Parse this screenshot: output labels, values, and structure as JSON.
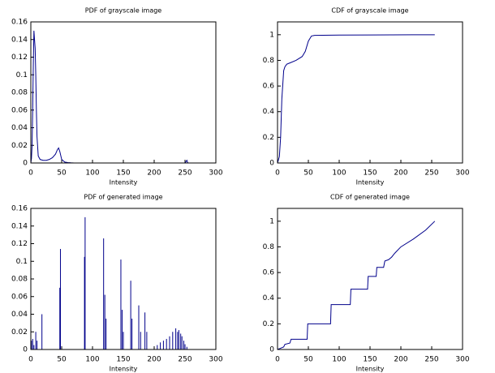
{
  "chart_data": [
    {
      "type": "line",
      "title": "PDF of grayscale image",
      "xlabel": "Intensity",
      "color": "#00008b",
      "x": [
        0,
        1,
        2,
        3,
        4,
        5,
        6,
        7,
        8,
        9,
        10,
        12,
        15,
        20,
        25,
        30,
        35,
        40,
        43,
        45,
        47,
        50,
        55,
        60,
        65,
        70,
        100,
        150,
        200,
        250,
        252,
        253,
        254,
        255
      ],
      "values": [
        0,
        0.005,
        0.02,
        0.06,
        0.11,
        0.15,
        0.14,
        0.13,
        0.1,
        0.06,
        0.03,
        0.008,
        0.004,
        0.003,
        0.003,
        0.004,
        0.006,
        0.01,
        0.015,
        0.017,
        0.013,
        0.004,
        0.001,
        0.0005,
        0.0002,
        0,
        0,
        0,
        0,
        0,
        0.002,
        0.003,
        0.001,
        0
      ],
      "xlim": [
        0,
        300
      ],
      "xticks": [
        0,
        50,
        100,
        150,
        200,
        250,
        300
      ],
      "ylim": [
        0,
        0.16
      ],
      "yticks": [
        0,
        0.02,
        0.04,
        0.06,
        0.08,
        0.1,
        0.12,
        0.14,
        0.16
      ]
    },
    {
      "type": "line",
      "title": "CDF of grayscale image",
      "xlabel": "Intensity",
      "color": "#00008b",
      "x": [
        0,
        3,
        5,
        7,
        10,
        12,
        15,
        20,
        30,
        40,
        45,
        50,
        55,
        60,
        100,
        150,
        255
      ],
      "values": [
        0,
        0.05,
        0.2,
        0.5,
        0.72,
        0.75,
        0.77,
        0.78,
        0.8,
        0.83,
        0.87,
        0.95,
        0.99,
        0.995,
        0.997,
        0.998,
        1
      ],
      "xlim": [
        0,
        300
      ],
      "xticks": [
        0,
        50,
        100,
        150,
        200,
        250,
        300
      ],
      "ylim": [
        0,
        1.1
      ],
      "yticks": [
        0,
        0.2,
        0.4,
        0.6,
        0.8,
        1
      ]
    },
    {
      "type": "stem",
      "title": "PDF of generated image",
      "xlabel": "Intensity",
      "color": "#00008b",
      "x": [
        1,
        3,
        5,
        8,
        10,
        18,
        47,
        48,
        87,
        88,
        118,
        120,
        122,
        146,
        148,
        150,
        162,
        164,
        175,
        178,
        185,
        188,
        205,
        210,
        215,
        220,
        225,
        230,
        235,
        238,
        240,
        243,
        245,
        248,
        250,
        253
      ],
      "values": [
        0.01,
        0.012,
        0.005,
        0.02,
        0.01,
        0.04,
        0.07,
        0.114,
        0.105,
        0.15,
        0.126,
        0.062,
        0.035,
        0.102,
        0.045,
        0.02,
        0.078,
        0.035,
        0.05,
        0.02,
        0.042,
        0.02,
        0.005,
        0.008,
        0.01,
        0.012,
        0.015,
        0.02,
        0.024,
        0.02,
        0.022,
        0.018,
        0.015,
        0.01,
        0.006,
        0.003
      ],
      "xlim": [
        0,
        300
      ],
      "xticks": [
        0,
        50,
        100,
        150,
        200,
        250,
        300
      ],
      "ylim": [
        0,
        0.16
      ],
      "yticks": [
        0,
        0.02,
        0.04,
        0.06,
        0.08,
        0.1,
        0.12,
        0.14,
        0.16
      ]
    },
    {
      "type": "line",
      "title": "CDF of generated image",
      "xlabel": "Intensity",
      "color": "#00008b",
      "x": [
        0,
        5,
        10,
        12,
        20,
        22,
        48,
        49,
        86,
        87,
        118,
        119,
        146,
        147,
        160,
        161,
        172,
        174,
        180,
        185,
        190,
        200,
        220,
        240,
        255
      ],
      "values": [
        0,
        0.01,
        0.02,
        0.04,
        0.05,
        0.08,
        0.08,
        0.2,
        0.2,
        0.35,
        0.35,
        0.47,
        0.47,
        0.57,
        0.57,
        0.64,
        0.64,
        0.69,
        0.7,
        0.72,
        0.75,
        0.8,
        0.86,
        0.93,
        1
      ],
      "xlim": [
        0,
        300
      ],
      "xticks": [
        0,
        50,
        100,
        150,
        200,
        250,
        300
      ],
      "ylim": [
        0,
        1.1
      ],
      "yticks": [
        0,
        0.2,
        0.4,
        0.6,
        0.8,
        1
      ]
    }
  ]
}
